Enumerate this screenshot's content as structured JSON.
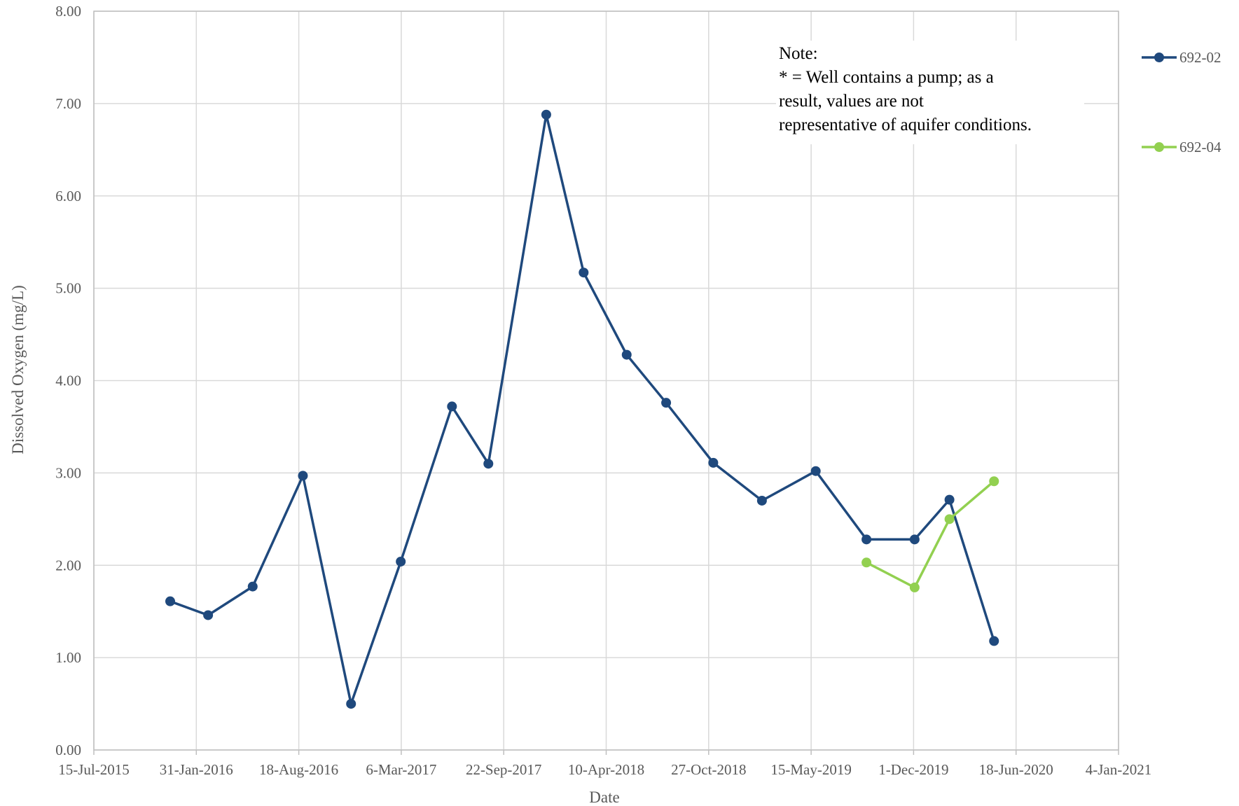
{
  "chart_data": {
    "type": "line",
    "title": "",
    "xlabel": "Date",
    "ylabel": "Dissolved Oxygen (mg/L)",
    "ylim": [
      0,
      8
    ],
    "y_ticks": [
      "0.00",
      "1.00",
      "2.00",
      "3.00",
      "4.00",
      "5.00",
      "6.00",
      "7.00",
      "8.00"
    ],
    "x_ticks": [
      {
        "label": "15-Jul-2015",
        "date": "2015-07-15"
      },
      {
        "label": "31-Jan-2016",
        "date": "2016-01-31"
      },
      {
        "label": "18-Aug-2016",
        "date": "2016-08-18"
      },
      {
        "label": "6-Mar-2017",
        "date": "2017-03-06"
      },
      {
        "label": "22-Sep-2017",
        "date": "2017-09-22"
      },
      {
        "label": "10-Apr-2018",
        "date": "2018-04-10"
      },
      {
        "label": "27-Oct-2018",
        "date": "2018-10-27"
      },
      {
        "label": "15-May-2019",
        "date": "2019-05-15"
      },
      {
        "label": "1-Dec-2019",
        "date": "2019-12-01"
      },
      {
        "label": "18-Jun-2020",
        "date": "2020-06-18"
      },
      {
        "label": "4-Jan-2021",
        "date": "2021-01-04"
      }
    ],
    "grid": true,
    "legend_position": "right",
    "series": [
      {
        "name": "692-02",
        "color": "#1f497d",
        "points": [
          {
            "x": "2015-12-11",
            "y": 1.61
          },
          {
            "x": "2016-02-23",
            "y": 1.46
          },
          {
            "x": "2016-05-20",
            "y": 1.77
          },
          {
            "x": "2016-08-26",
            "y": 2.97
          },
          {
            "x": "2016-11-28",
            "y": 0.5
          },
          {
            "x": "2017-03-05",
            "y": 2.04
          },
          {
            "x": "2017-06-13",
            "y": 3.72
          },
          {
            "x": "2017-08-23",
            "y": 3.1
          },
          {
            "x": "2017-12-14",
            "y": 6.88
          },
          {
            "x": "2018-02-25",
            "y": 5.17
          },
          {
            "x": "2018-05-20",
            "y": 4.28
          },
          {
            "x": "2018-08-05",
            "y": 3.76
          },
          {
            "x": "2018-11-05",
            "y": 3.11
          },
          {
            "x": "2019-02-08",
            "y": 2.7
          },
          {
            "x": "2019-05-24",
            "y": 3.02
          },
          {
            "x": "2019-08-31",
            "y": 2.28
          },
          {
            "x": "2019-12-03",
            "y": 2.28
          },
          {
            "x": "2020-02-09",
            "y": 2.71
          },
          {
            "x": "2020-05-06",
            "y": 1.18
          }
        ]
      },
      {
        "name": "692-04",
        "color": "#92d050",
        "points": [
          {
            "x": "2019-08-31",
            "y": 2.03
          },
          {
            "x": "2019-12-03",
            "y": 1.76
          },
          {
            "x": "2020-02-09",
            "y": 2.5
          },
          {
            "x": "2020-05-06",
            "y": 2.91
          }
        ]
      }
    ],
    "note": {
      "lines": [
        "Note:",
        "* = Well contains a pump; as a",
        "result, values are not",
        "representative of aquifer conditions."
      ]
    },
    "colors": {
      "gridline": "#d9d9d9",
      "axis": "#bfbfbf",
      "text": "#595959"
    }
  }
}
